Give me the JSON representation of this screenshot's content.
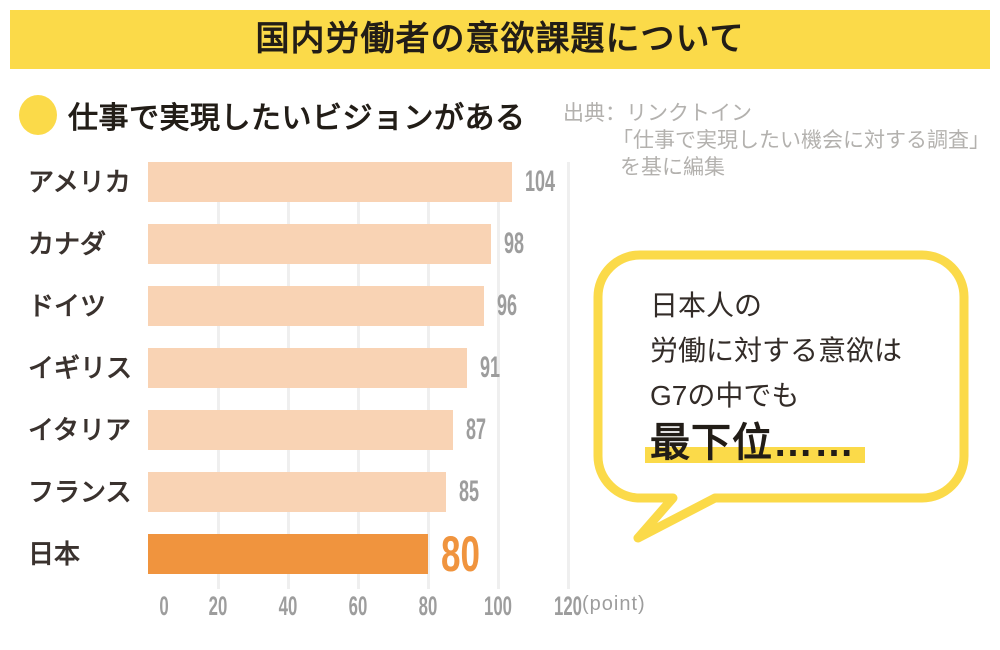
{
  "header": {
    "title": "国内労働者の意欲課題について"
  },
  "legend": {
    "label": "仕事で実現したいビジョンがある",
    "marker": "yellow-circle"
  },
  "source": {
    "line1": "出典：リンクトイン",
    "line2": "「仕事で実現したい機会に対する調査」",
    "line3": "を基に編集"
  },
  "chart_data": {
    "type": "bar",
    "orientation": "horizontal",
    "title": "仕事で実現したいビジョンがある",
    "categories": [
      "アメリカ",
      "カナダ",
      "ドイツ",
      "イギリス",
      "イタリア",
      "フランス",
      "日本"
    ],
    "values": [
      104,
      98,
      96,
      91,
      87,
      85,
      80
    ],
    "highlight_category": "日本",
    "x_ticks": [
      0,
      20,
      40,
      60,
      80,
      100,
      120
    ],
    "xlim": [
      0,
      120
    ],
    "unit_label": "(point)",
    "grid": true,
    "legend_position": "top-left"
  },
  "bubble": {
    "lines": [
      "日本人の",
      "労働に対する意欲は",
      "G7の中でも"
    ],
    "emphasis": "最下位……"
  },
  "colors": {
    "accent_yellow": "#fbda49",
    "bar_peach": "#f9d3b4",
    "bar_orange": "#f0943e",
    "value_gray": "#9d9d9d",
    "grid_gray": "#efefef",
    "source_gray": "#b3b1ae",
    "dark_text": "#332c28",
    "label_text": "#3a322e",
    "banner_text": "#221d17"
  }
}
